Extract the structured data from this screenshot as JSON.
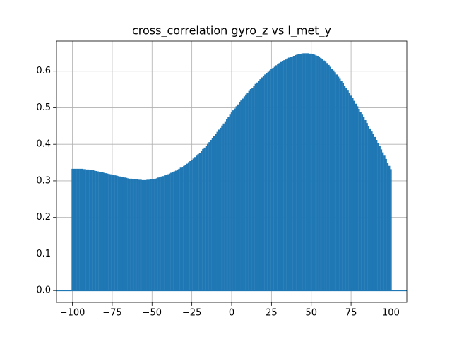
{
  "chart_data": {
    "type": "vlines",
    "title": "cross_correlation gyro_z vs l_met_y",
    "color": "#1f77b4",
    "grid": true,
    "xlim": [
      -110,
      110
    ],
    "ylim": [
      -0.0325,
      0.6825
    ],
    "xticks": [
      {
        "value": -100,
        "label": "−100"
      },
      {
        "value": -75,
        "label": "−75"
      },
      {
        "value": -50,
        "label": "−50"
      },
      {
        "value": -25,
        "label": "−25"
      },
      0,
      25,
      50,
      75,
      100
    ],
    "yticks": [
      {
        "value": 0,
        "label": "0.0"
      },
      0.1,
      0.2,
      0.3,
      0.4,
      0.5,
      0.6
    ],
    "x": [
      -100,
      -99,
      -98,
      -97,
      -96,
      -95,
      -94,
      -93,
      -92,
      -91,
      -90,
      -89,
      -88,
      -87,
      -86,
      -85,
      -84,
      -83,
      -82,
      -81,
      -80,
      -79,
      -78,
      -77,
      -76,
      -75,
      -74,
      -73,
      -72,
      -71,
      -70,
      -69,
      -68,
      -67,
      -66,
      -65,
      -64,
      -63,
      -62,
      -61,
      -60,
      -59,
      -58,
      -57,
      -56,
      -55,
      -54,
      -53,
      -52,
      -51,
      -50,
      -49,
      -48,
      -47,
      -46,
      -45,
      -44,
      -43,
      -42,
      -41,
      -40,
      -39,
      -38,
      -37,
      -36,
      -35,
      -34,
      -33,
      -32,
      -31,
      -30,
      -29,
      -28,
      -27,
      -26,
      -25,
      -24,
      -23,
      -22,
      -21,
      -20,
      -19,
      -18,
      -17,
      -16,
      -15,
      -14,
      -13,
      -12,
      -11,
      -10,
      -9,
      -8,
      -7,
      -6,
      -5,
      -4,
      -3,
      -2,
      -1,
      0,
      1,
      2,
      3,
      4,
      5,
      6,
      7,
      8,
      9,
      10,
      11,
      12,
      13,
      14,
      15,
      16,
      17,
      18,
      19,
      20,
      21,
      22,
      23,
      24,
      25,
      26,
      27,
      28,
      29,
      30,
      31,
      32,
      33,
      34,
      35,
      36,
      37,
      38,
      39,
      40,
      41,
      42,
      43,
      44,
      45,
      46,
      47,
      48,
      49,
      50,
      51,
      52,
      53,
      54,
      55,
      56,
      57,
      58,
      59,
      60,
      61,
      62,
      63,
      64,
      65,
      66,
      67,
      68,
      69,
      70,
      71,
      72,
      73,
      74,
      75,
      76,
      77,
      78,
      79,
      80,
      81,
      82,
      83,
      84,
      85,
      86,
      87,
      88,
      89,
      90,
      91,
      92,
      93,
      94,
      95,
      96,
      97,
      98,
      99,
      100
    ],
    "values": [
      0.333,
      0.333,
      0.333,
      0.333,
      0.333,
      0.333,
      0.333,
      0.332,
      0.332,
      0.331,
      0.331,
      0.33,
      0.329,
      0.329,
      0.328,
      0.327,
      0.326,
      0.325,
      0.324,
      0.323,
      0.322,
      0.321,
      0.32,
      0.319,
      0.318,
      0.317,
      0.316,
      0.315,
      0.314,
      0.313,
      0.312,
      0.311,
      0.31,
      0.309,
      0.308,
      0.307,
      0.306,
      0.306,
      0.305,
      0.305,
      0.304,
      0.304,
      0.303,
      0.303,
      0.302,
      0.302,
      0.302,
      0.303,
      0.303,
      0.304,
      0.304,
      0.305,
      0.306,
      0.307,
      0.309,
      0.31,
      0.312,
      0.313,
      0.315,
      0.316,
      0.318,
      0.32,
      0.322,
      0.324,
      0.326,
      0.328,
      0.331,
      0.333,
      0.336,
      0.338,
      0.341,
      0.344,
      0.347,
      0.351,
      0.354,
      0.357,
      0.361,
      0.365,
      0.369,
      0.373,
      0.377,
      0.382,
      0.387,
      0.391,
      0.396,
      0.401,
      0.406,
      0.412,
      0.417,
      0.423,
      0.428,
      0.434,
      0.44,
      0.445,
      0.451,
      0.457,
      0.463,
      0.469,
      0.475,
      0.481,
      0.487,
      0.493,
      0.498,
      0.504,
      0.509,
      0.515,
      0.52,
      0.525,
      0.531,
      0.536,
      0.541,
      0.546,
      0.551,
      0.555,
      0.56,
      0.565,
      0.569,
      0.574,
      0.578,
      0.583,
      0.587,
      0.591,
      0.595,
      0.598,
      0.602,
      0.606,
      0.609,
      0.612,
      0.616,
      0.619,
      0.622,
      0.625,
      0.627,
      0.63,
      0.632,
      0.635,
      0.637,
      0.639,
      0.64,
      0.642,
      0.644,
      0.645,
      0.646,
      0.647,
      0.648,
      0.649,
      0.649,
      0.649,
      0.649,
      0.648,
      0.648,
      0.646,
      0.645,
      0.643,
      0.642,
      0.64,
      0.636,
      0.633,
      0.629,
      0.626,
      0.622,
      0.617,
      0.612,
      0.607,
      0.602,
      0.597,
      0.591,
      0.585,
      0.579,
      0.573,
      0.567,
      0.56,
      0.553,
      0.547,
      0.54,
      0.533,
      0.526,
      0.519,
      0.511,
      0.504,
      0.497,
      0.489,
      0.481,
      0.474,
      0.466,
      0.458,
      0.45,
      0.443,
      0.435,
      0.428,
      0.42,
      0.412,
      0.403,
      0.395,
      0.386,
      0.378,
      0.369,
      0.36,
      0.35,
      0.341,
      0.332
    ]
  }
}
